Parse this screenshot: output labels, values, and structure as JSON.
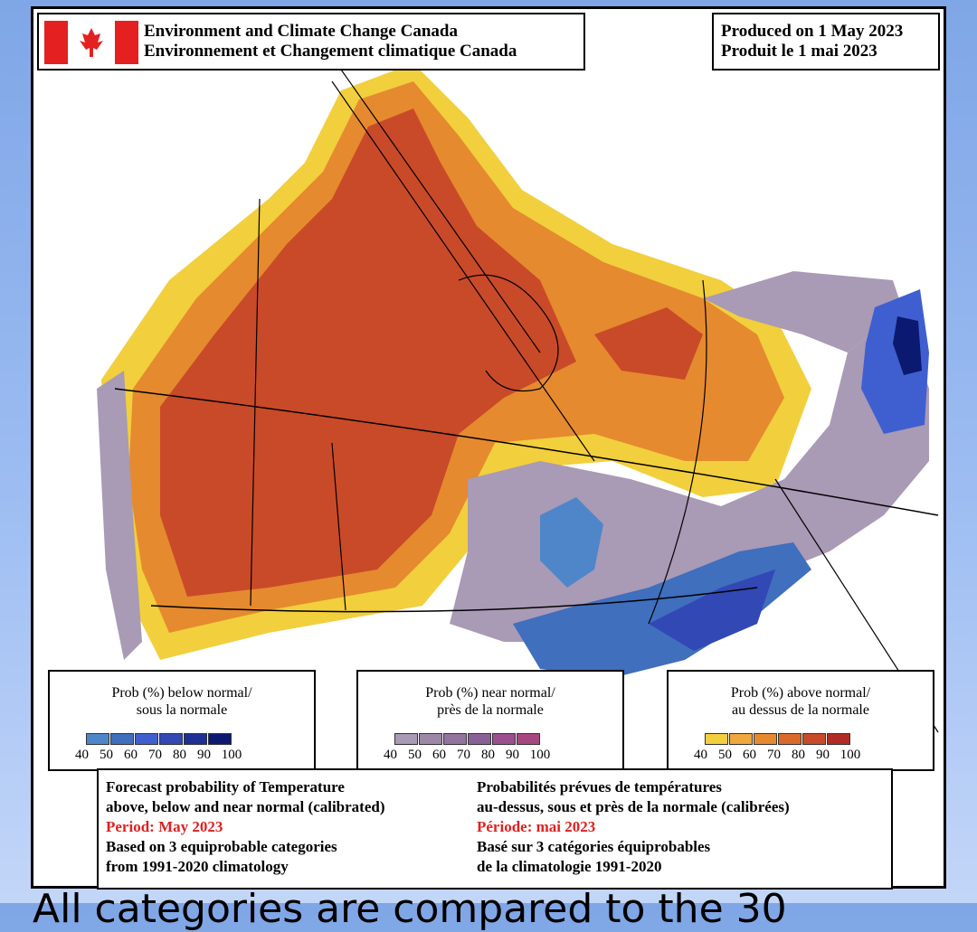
{
  "header": {
    "agency_en": "Environment and Climate Change Canada",
    "agency_fr": "Environnement et Changement climatique Canada",
    "produced_en": "Produced on 1 May 2023",
    "produced_fr": "Produit le 1 mai 2023"
  },
  "legends": [
    {
      "title_line1": "Prob (%) below normal/",
      "title_line2": "sous la normale",
      "colors": [
        "#4f86c9",
        "#3f6fbd",
        "#3f5fd0",
        "#3248b5",
        "#1e2f96",
        "#0b1a70"
      ],
      "ticks": [
        "40",
        "50",
        "60",
        "70",
        "80",
        "90",
        "100"
      ]
    },
    {
      "title_line1": "Prob (%) near normal/",
      "title_line2": "près de la normale",
      "colors": [
        "#a99ab5",
        "#9e88a8",
        "#93749e",
        "#8a6196",
        "#9a4f8e",
        "#a8477f"
      ],
      "ticks": [
        "40",
        "50",
        "60",
        "70",
        "80",
        "90",
        "100"
      ]
    },
    {
      "title_line1": "Prob (%) above normal/",
      "title_line2": "au dessus de la normale",
      "colors": [
        "#f2cf3c",
        "#f0a73c",
        "#e58a2f",
        "#d96a2b",
        "#c94a28",
        "#b22c26"
      ],
      "ticks": [
        "40",
        "50",
        "60",
        "70",
        "80",
        "90",
        "100"
      ]
    }
  ],
  "description": {
    "en_line1": "Forecast probability of Temperature",
    "en_line2": "above, below and near normal (calibrated)",
    "en_period": "Period: May 2023",
    "en_line4": "Based on 3 equiprobable categories",
    "en_line5": " from 1991-2020 climatology",
    "fr_line1": "Probabilités prévues de températures",
    "fr_line2": "au-dessus, sous et près de la normale (calibrées)",
    "fr_period": "Période: mai 2023",
    "fr_line4": "Basé sur 3 catégories équiprobables",
    "fr_line5": "de la climatologie 1991-2020"
  },
  "caption": "All categories are compared to the 30"
}
